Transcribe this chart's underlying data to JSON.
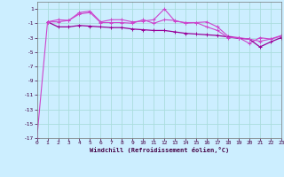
{
  "xlabel": "Windchill (Refroidissement éolien,°C)",
  "bg_color": "#cceeff",
  "grid_color": "#aadddd",
  "line_color_dark": "#990099",
  "line_color_light": "#cc44cc",
  "xlim": [
    0,
    23
  ],
  "ylim": [
    -17,
    2
  ],
  "yticks": [
    1,
    -1,
    -3,
    -5,
    -7,
    -9,
    -11,
    -13,
    -15,
    -17
  ],
  "xticks": [
    0,
    1,
    2,
    3,
    4,
    5,
    6,
    7,
    8,
    9,
    10,
    11,
    12,
    13,
    14,
    15,
    16,
    17,
    18,
    19,
    20,
    21,
    22,
    23
  ],
  "series1_x": [
    0,
    1,
    2,
    3,
    4,
    5,
    6,
    7,
    8,
    9,
    10,
    11,
    12,
    13,
    14,
    15,
    16,
    17,
    18,
    19,
    20,
    21,
    22,
    23
  ],
  "series1_y": [
    -17,
    -0.8,
    -0.5,
    -0.6,
    0.5,
    0.7,
    -0.8,
    -0.5,
    -0.5,
    -0.8,
    -0.7,
    -0.5,
    1.0,
    -0.7,
    -0.9,
    -0.9,
    -0.8,
    -1.5,
    -2.8,
    -3.0,
    -3.8,
    -3.0,
    -3.2,
    -2.8
  ],
  "series2_x": [
    1,
    2,
    3,
    4,
    5,
    6,
    7,
    8,
    9,
    10,
    11,
    12,
    13,
    14,
    15,
    16,
    17,
    18,
    19,
    20,
    21,
    22,
    23
  ],
  "series2_y": [
    -0.8,
    -1.5,
    -1.5,
    -1.3,
    -1.4,
    -1.5,
    -1.6,
    -1.6,
    -1.8,
    -1.9,
    -2.0,
    -2.0,
    -2.2,
    -2.4,
    -2.5,
    -2.6,
    -2.7,
    -2.9,
    -3.1,
    -3.2,
    -4.3,
    -3.6,
    -3.0
  ],
  "series3_x": [
    1,
    2,
    3,
    4,
    5,
    6,
    7,
    8,
    9,
    10,
    11,
    12,
    13,
    14,
    15,
    16,
    17,
    18,
    19,
    20,
    21,
    22,
    23
  ],
  "series3_y": [
    -0.8,
    -0.8,
    -0.6,
    0.3,
    0.5,
    -0.9,
    -0.9,
    -0.9,
    -1.0,
    -0.5,
    -1.0,
    -0.5,
    -0.6,
    -1.0,
    -0.9,
    -1.5,
    -2.0,
    -3.0,
    -3.0,
    -3.2,
    -3.5,
    -3.2,
    -2.7
  ]
}
